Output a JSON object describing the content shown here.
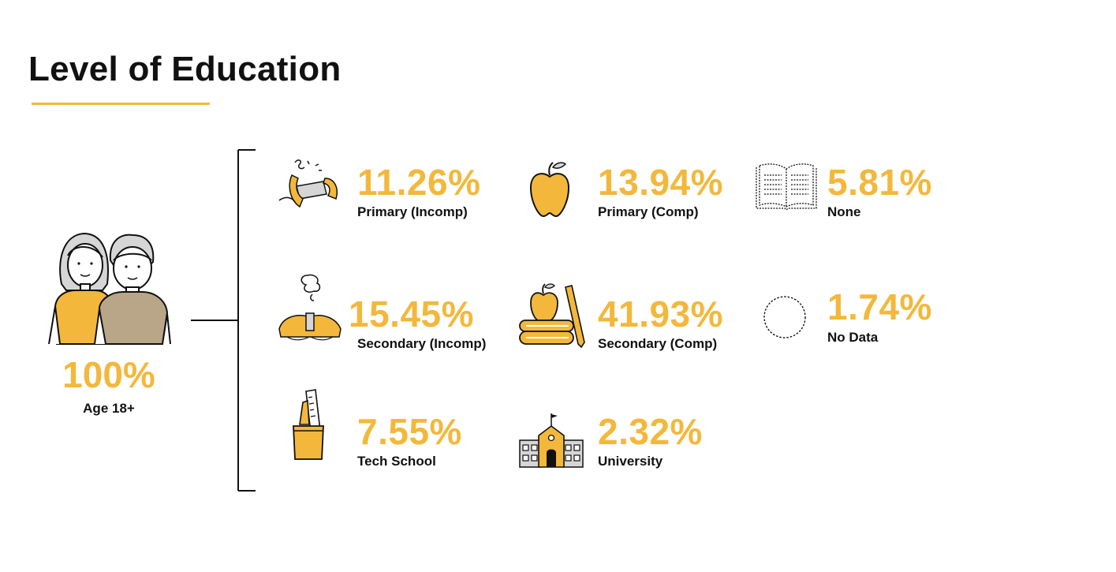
{
  "title": "Level of Education",
  "total": {
    "value": "100%",
    "label": "Age 18+"
  },
  "colors": {
    "accent": "#f3b83b",
    "text": "#111111",
    "grey": "#b9a588"
  },
  "chart_data": {
    "type": "table",
    "title": "Level of Education",
    "total": {
      "value": 100,
      "label": "Age 18+"
    },
    "categories": [
      {
        "value": "11.26%",
        "label": "Primary (Incomp)",
        "icon": "broken-pencil-icon"
      },
      {
        "value": "13.94%",
        "label": "Primary (Comp)",
        "icon": "apple-icon"
      },
      {
        "value": "5.81%",
        "label": "None",
        "icon": "open-book-outline-icon"
      },
      {
        "value": "15.45%",
        "label": "Secondary (Incomp)",
        "icon": "book-thought-icon"
      },
      {
        "value": "41.93%",
        "label": "Secondary (Comp)",
        "icon": "apple-books-pencil-icon"
      },
      {
        "value": "1.74%",
        "label": "No Data",
        "icon": "dashed-circle-icon"
      },
      {
        "value": "7.55%",
        "label": "Tech School",
        "icon": "pencil-cup-icon"
      },
      {
        "value": "2.32%",
        "label": "University",
        "icon": "school-building-icon"
      }
    ]
  }
}
